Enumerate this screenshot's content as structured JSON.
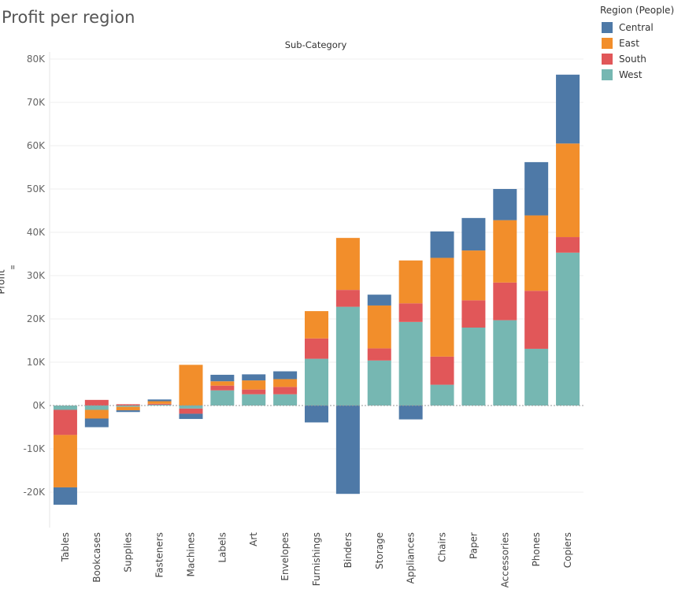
{
  "title": "Profit per region",
  "header_label": "Sub-Category",
  "legend": {
    "title": "Region (People)",
    "items": [
      {
        "label": "Central",
        "color": "#4e79a7"
      },
      {
        "label": "East",
        "color": "#f28e2b"
      },
      {
        "label": "South",
        "color": "#e15759"
      },
      {
        "label": "West",
        "color": "#76b7b2"
      }
    ]
  },
  "chart_data": {
    "type": "bar",
    "stacked": true,
    "title": "Profit per region",
    "xlabel": "Sub-Category",
    "ylabel": "Profit",
    "ylim": [
      -28000,
      80000
    ],
    "yticks": [
      -20000,
      -10000,
      0,
      10000,
      20000,
      30000,
      40000,
      50000,
      60000,
      70000,
      80000
    ],
    "ytick_labels": [
      "-20K",
      "-10K",
      "0K",
      "10K",
      "20K",
      "30K",
      "40K",
      "50K",
      "60K",
      "70K",
      "80K"
    ],
    "grid": true,
    "legend_position": "top-right",
    "categories": [
      "Tables",
      "Bookcases",
      "Supplies",
      "Fasteners",
      "Machines",
      "Labels",
      "Art",
      "Envelopes",
      "Furnishings",
      "Binders",
      "Storage",
      "Appliances",
      "Chairs",
      "Paper",
      "Accessories",
      "Phones",
      "Copiers"
    ],
    "series": [
      {
        "name": "West",
        "color": "#76b7b2",
        "values": [
          -1000,
          -1000,
          -300,
          200,
          -700,
          3500,
          2600,
          2600,
          10800,
          22800,
          10400,
          19300,
          4800,
          18000,
          19700,
          13100,
          35300
        ]
      },
      {
        "name": "South",
        "color": "#e15759",
        "values": [
          -5800,
          1300,
          300,
          200,
          -1200,
          1100,
          1100,
          1700,
          4700,
          3900,
          2800,
          4300,
          6500,
          6300,
          8700,
          13400,
          3600
        ]
      },
      {
        "name": "East",
        "color": "#f28e2b",
        "values": [
          -12100,
          -2000,
          -800,
          600,
          9400,
          1000,
          2100,
          1800,
          6300,
          12000,
          9900,
          9900,
          22800,
          11500,
          14400,
          17400,
          21600
        ]
      },
      {
        "name": "Central",
        "color": "#4e79a7",
        "values": [
          -4000,
          -2000,
          -400,
          400,
          -1200,
          1500,
          1400,
          1800,
          -3900,
          -20400,
          2500,
          -3200,
          6100,
          7500,
          7200,
          12300,
          15900
        ]
      }
    ]
  }
}
